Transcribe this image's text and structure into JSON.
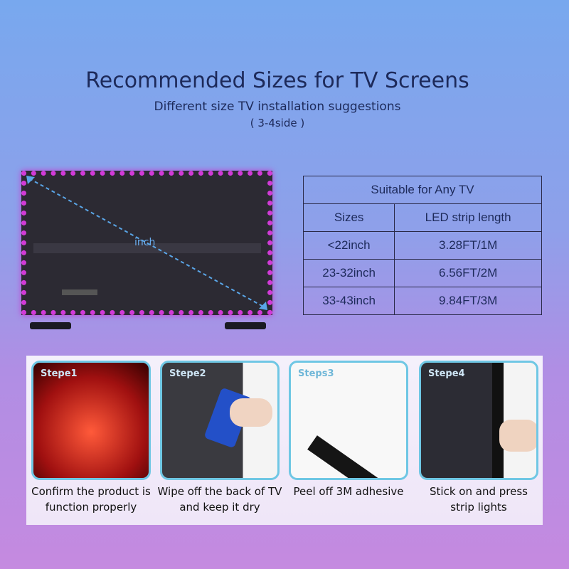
{
  "header": {
    "title": "Recommended Sizes for TV Screens",
    "subtitle": "Different size TV installation suggestions",
    "sides": "( 3-4side )"
  },
  "tv": {
    "diagonal_label": "inch"
  },
  "table": {
    "title": "Suitable for Any TV",
    "headers": [
      "Sizes",
      "LED strip length"
    ],
    "rows": [
      [
        "<22inch",
        "3.28FT/1M"
      ],
      [
        "23-32inch",
        "6.56FT/2M"
      ],
      [
        "33-43inch",
        "9.84FT/3M"
      ]
    ]
  },
  "steps": [
    {
      "label": "Stepe1",
      "caption": "Confirm the product is function properly"
    },
    {
      "label": "Stepe2",
      "caption": "Wipe off the back of TV and keep it dry"
    },
    {
      "label": "Steps3",
      "caption": "Peel off 3M adhesive"
    },
    {
      "label": "Stepe4",
      "caption": "Stick on and press strip lights"
    }
  ],
  "colors": {
    "led": "#d23ad8",
    "card_border": "#6fc7e4",
    "text": "#1d2a5a"
  }
}
